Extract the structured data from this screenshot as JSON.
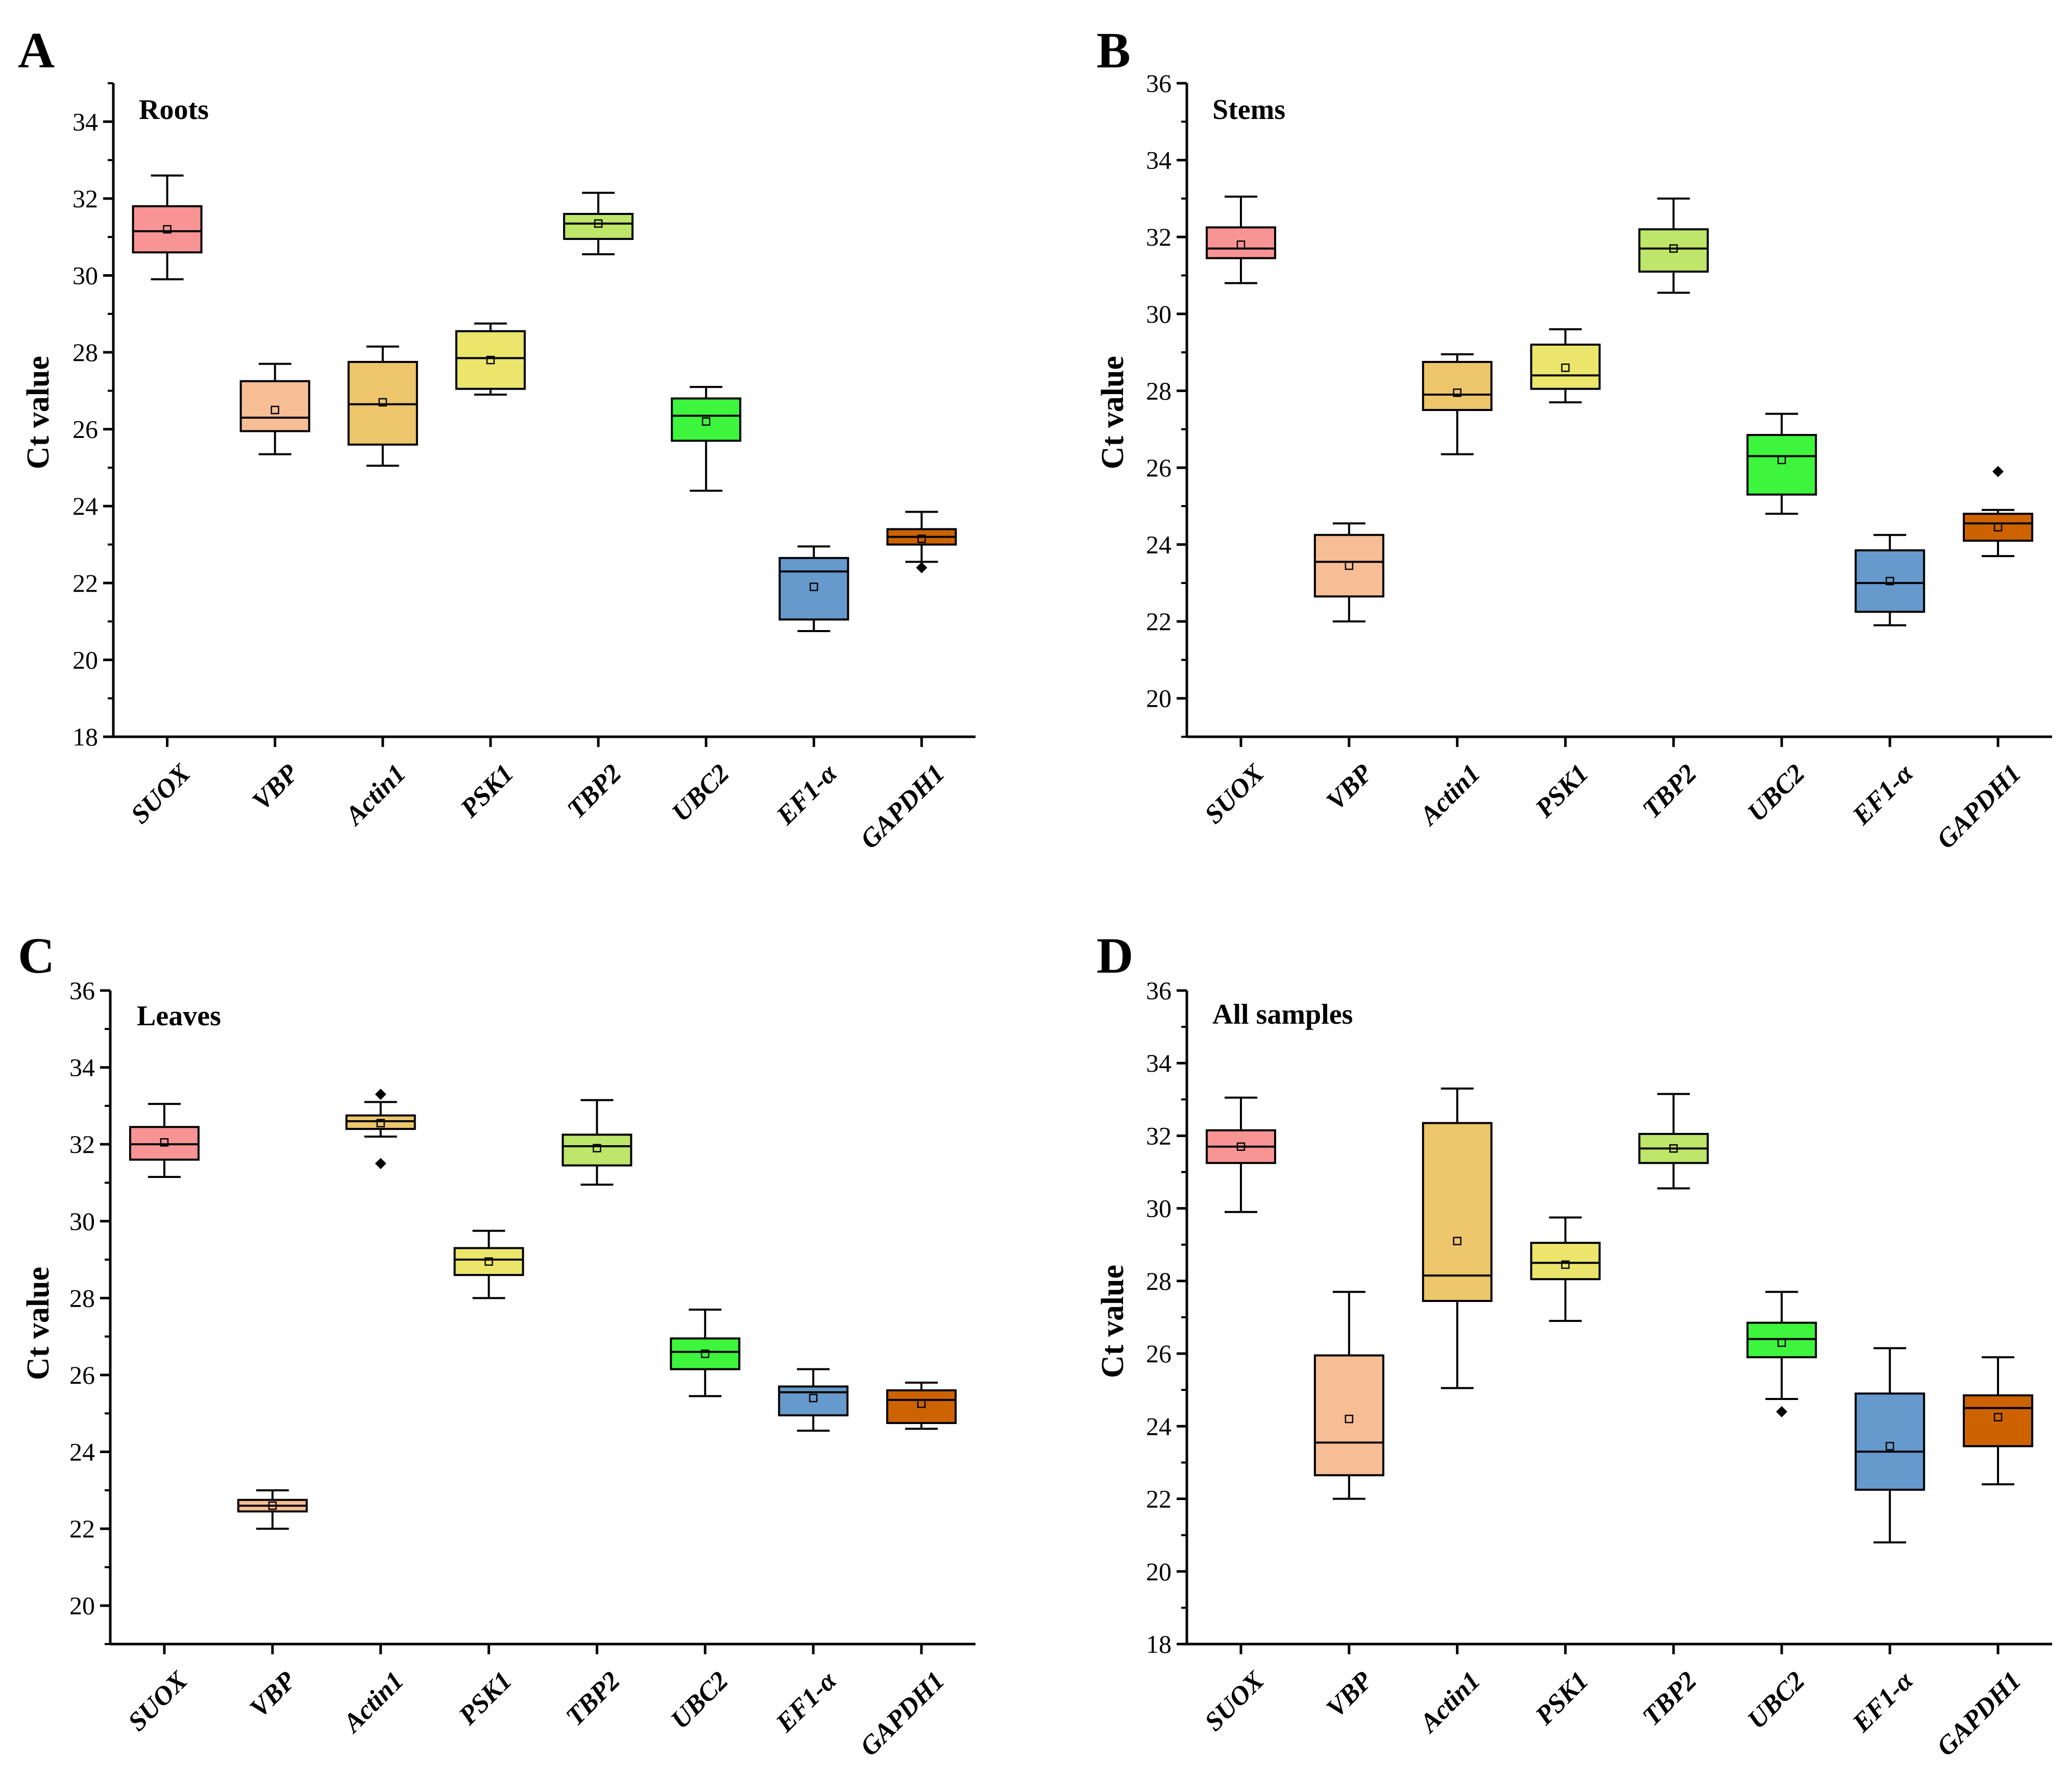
{
  "chart_data": [
    {
      "panel": "A",
      "type": "box",
      "title": "Roots",
      "ylabel": "Ct value",
      "ylim": [
        18,
        35
      ],
      "yticks": [
        18,
        20,
        22,
        24,
        26,
        28,
        30,
        32,
        34
      ],
      "categories": [
        "SUOX",
        "VBP",
        "Actin1",
        "PSK1",
        "TBP2",
        "UBC2",
        "EF1-α",
        "GAPDH1"
      ],
      "colors": [
        "#f99494",
        "#f7bd95",
        "#edc56a",
        "#ebe66b",
        "#bde66a",
        "#3ef53e",
        "#6699cc",
        "#cc6300"
      ],
      "boxes": [
        {
          "min": 29.9,
          "q1": 30.6,
          "median": 31.15,
          "q3": 31.8,
          "max": 32.6,
          "mean": 31.2,
          "outliers": []
        },
        {
          "min": 25.35,
          "q1": 25.95,
          "median": 26.3,
          "q3": 27.25,
          "max": 27.7,
          "mean": 26.5,
          "outliers": []
        },
        {
          "min": 25.05,
          "q1": 25.6,
          "median": 26.65,
          "q3": 27.75,
          "max": 28.15,
          "mean": 26.7,
          "outliers": []
        },
        {
          "min": 26.9,
          "q1": 27.05,
          "median": 27.85,
          "q3": 28.55,
          "max": 28.75,
          "mean": 27.8,
          "outliers": []
        },
        {
          "min": 30.55,
          "q1": 30.95,
          "median": 31.35,
          "q3": 31.6,
          "max": 32.15,
          "mean": 31.35,
          "outliers": []
        },
        {
          "min": 24.4,
          "q1": 25.7,
          "median": 26.35,
          "q3": 26.8,
          "max": 27.1,
          "mean": 26.2,
          "outliers": []
        },
        {
          "min": 20.75,
          "q1": 21.05,
          "median": 22.3,
          "q3": 22.65,
          "max": 22.95,
          "mean": 21.9,
          "outliers": []
        },
        {
          "min": 22.55,
          "q1": 23.0,
          "median": 23.2,
          "q3": 23.4,
          "max": 23.85,
          "mean": 23.15,
          "outliers": [
            22.4
          ]
        }
      ]
    },
    {
      "panel": "B",
      "type": "box",
      "title": "Stems",
      "ylabel": "Ct value",
      "ylim": [
        19,
        36
      ],
      "yticks": [
        20,
        22,
        24,
        26,
        28,
        30,
        32,
        34,
        36
      ],
      "categories": [
        "SUOX",
        "VBP",
        "Actin1",
        "PSK1",
        "TBP2",
        "UBC2",
        "EF1-α",
        "GAPDH1"
      ],
      "colors": [
        "#f99494",
        "#f7bd95",
        "#edc56a",
        "#ebe66b",
        "#bde66a",
        "#3ef53e",
        "#6699cc",
        "#cc6300"
      ],
      "boxes": [
        {
          "min": 30.8,
          "q1": 31.45,
          "median": 31.7,
          "q3": 32.25,
          "max": 33.05,
          "mean": 31.8,
          "outliers": []
        },
        {
          "min": 22.0,
          "q1": 22.65,
          "median": 23.55,
          "q3": 24.25,
          "max": 24.55,
          "mean": 23.45,
          "outliers": []
        },
        {
          "min": 26.35,
          "q1": 27.5,
          "median": 27.9,
          "q3": 28.75,
          "max": 28.95,
          "mean": 27.95,
          "outliers": []
        },
        {
          "min": 27.7,
          "q1": 28.05,
          "median": 28.4,
          "q3": 29.2,
          "max": 29.6,
          "mean": 28.6,
          "outliers": []
        },
        {
          "min": 30.55,
          "q1": 31.1,
          "median": 31.7,
          "q3": 32.2,
          "max": 33.0,
          "mean": 31.7,
          "outliers": []
        },
        {
          "min": 24.8,
          "q1": 25.3,
          "median": 26.3,
          "q3": 26.85,
          "max": 27.4,
          "mean": 26.2,
          "outliers": []
        },
        {
          "min": 21.9,
          "q1": 22.25,
          "median": 23.0,
          "q3": 23.85,
          "max": 24.25,
          "mean": 23.05,
          "outliers": []
        },
        {
          "min": 23.7,
          "q1": 24.1,
          "median": 24.55,
          "q3": 24.8,
          "max": 24.9,
          "mean": 24.45,
          "outliers": [
            25.9
          ]
        }
      ]
    },
    {
      "panel": "C",
      "type": "box",
      "title": "Leaves",
      "ylabel": "Ct value",
      "ylim": [
        19,
        36
      ],
      "yticks": [
        20,
        22,
        24,
        26,
        28,
        30,
        32,
        34,
        36
      ],
      "categories": [
        "SUOX",
        "VBP",
        "Actin1",
        "PSK1",
        "TBP2",
        "UBC2",
        "EF1-α",
        "GAPDH1"
      ],
      "colors": [
        "#f99494",
        "#f7bd95",
        "#edc56a",
        "#ebe66b",
        "#bde66a",
        "#3ef53e",
        "#6699cc",
        "#cc6300"
      ],
      "boxes": [
        {
          "min": 31.15,
          "q1": 31.6,
          "median": 32.0,
          "q3": 32.45,
          "max": 33.05,
          "mean": 32.05,
          "outliers": []
        },
        {
          "min": 22.0,
          "q1": 22.45,
          "median": 22.6,
          "q3": 22.75,
          "max": 23.0,
          "mean": 22.6,
          "outliers": []
        },
        {
          "min": 32.2,
          "q1": 32.4,
          "median": 32.6,
          "q3": 32.75,
          "max": 33.1,
          "mean": 32.55,
          "outliers": [
            33.3,
            31.5
          ]
        },
        {
          "min": 28.0,
          "q1": 28.6,
          "median": 29.0,
          "q3": 29.3,
          "max": 29.75,
          "mean": 28.95,
          "outliers": []
        },
        {
          "min": 30.95,
          "q1": 31.45,
          "median": 31.95,
          "q3": 32.25,
          "max": 33.15,
          "mean": 31.9,
          "outliers": []
        },
        {
          "min": 25.45,
          "q1": 26.15,
          "median": 26.6,
          "q3": 26.95,
          "max": 27.7,
          "mean": 26.55,
          "outliers": []
        },
        {
          "min": 24.55,
          "q1": 24.95,
          "median": 25.55,
          "q3": 25.7,
          "max": 26.15,
          "mean": 25.4,
          "outliers": []
        },
        {
          "min": 24.6,
          "q1": 24.75,
          "median": 25.35,
          "q3": 25.6,
          "max": 25.8,
          "mean": 25.25,
          "outliers": []
        }
      ]
    },
    {
      "panel": "D",
      "type": "box",
      "title": "All samples",
      "ylabel": "Ct value",
      "ylim": [
        18,
        36
      ],
      "yticks": [
        18,
        20,
        22,
        24,
        26,
        28,
        30,
        32,
        34,
        36
      ],
      "categories": [
        "SUOX",
        "VBP",
        "Actin1",
        "PSK1",
        "TBP2",
        "UBC2",
        "EF1-α",
        "GAPDH1"
      ],
      "colors": [
        "#f99494",
        "#f7bd95",
        "#edc56a",
        "#ebe66b",
        "#bde66a",
        "#3ef53e",
        "#6699cc",
        "#cc6300"
      ],
      "boxes": [
        {
          "min": 29.9,
          "q1": 31.25,
          "median": 31.7,
          "q3": 32.15,
          "max": 33.05,
          "mean": 31.7,
          "outliers": []
        },
        {
          "min": 22.0,
          "q1": 22.65,
          "median": 23.55,
          "q3": 25.95,
          "max": 27.7,
          "mean": 24.2,
          "outliers": []
        },
        {
          "min": 25.05,
          "q1": 27.45,
          "median": 28.15,
          "q3": 32.35,
          "max": 33.3,
          "mean": 29.1,
          "outliers": []
        },
        {
          "min": 26.9,
          "q1": 28.05,
          "median": 28.5,
          "q3": 29.05,
          "max": 29.75,
          "mean": 28.45,
          "outliers": []
        },
        {
          "min": 30.55,
          "q1": 31.25,
          "median": 31.65,
          "q3": 32.05,
          "max": 33.15,
          "mean": 31.65,
          "outliers": []
        },
        {
          "min": 24.75,
          "q1": 25.9,
          "median": 26.4,
          "q3": 26.85,
          "max": 27.7,
          "mean": 26.3,
          "outliers": [
            24.4
          ]
        },
        {
          "min": 20.8,
          "q1": 22.25,
          "median": 23.3,
          "q3": 24.9,
          "max": 26.15,
          "mean": 23.45,
          "outliers": []
        },
        {
          "min": 22.4,
          "q1": 23.45,
          "median": 24.5,
          "q3": 24.85,
          "max": 25.9,
          "mean": 24.25,
          "outliers": []
        }
      ]
    }
  ]
}
